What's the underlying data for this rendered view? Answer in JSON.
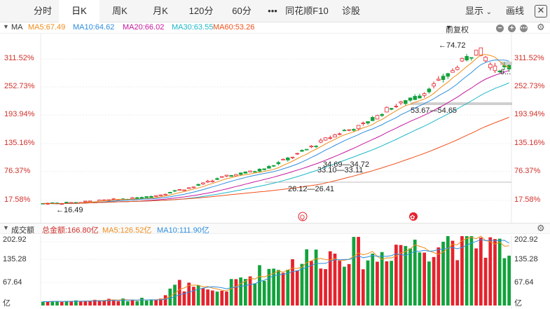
{
  "tabs": [
    {
      "label": "分时"
    },
    {
      "label": "日K"
    },
    {
      "label": "周K"
    },
    {
      "label": "月K"
    },
    {
      "label": "120分"
    },
    {
      "label": "60分"
    },
    {
      "label": "•••"
    },
    {
      "label": "同花顺F10"
    },
    {
      "label": "诊股"
    }
  ],
  "right_tabs": {
    "display": "显示",
    "draw": "画线"
  },
  "ma_legend": {
    "prefix": "MA",
    "items": [
      {
        "text": "MA5:67.49",
        "color": "#f08c1a"
      },
      {
        "text": "MA10:64.62",
        "color": "#2d8ee0"
      },
      {
        "text": "MA20:66.02",
        "color": "#c6189e"
      },
      {
        "text": "MA30:63.55",
        "color": "#1eb8c8"
      },
      {
        "text": "MA60:53.26",
        "color": "#f0501a"
      }
    ],
    "adjust": "前复权"
  },
  "price_axis": [
    "311.52%",
    "252.73%",
    "193.94%",
    "135.16%",
    "76.37%",
    "17.58%"
  ],
  "volume_legend": {
    "title": "成交额",
    "items": [
      {
        "text": "总金额:166.80亿",
        "color": "#d0302a"
      },
      {
        "text": "MA5:126.52亿",
        "color": "#f08c1a"
      },
      {
        "text": "MA10:111.90亿",
        "color": "#2d8ee0"
      }
    ]
  },
  "volume_axis": [
    "202.92",
    "135.28",
    "67.64",
    "亿"
  ],
  "annotations": {
    "high": "74.72",
    "low": "16.49",
    "last": "6...",
    "range1": "53.67—54.65",
    "range2": "34.69—34.72",
    "range3": "33.10—33.11",
    "range4": "26.12—26.41",
    "badge1": "Q",
    "badge2": "✿"
  },
  "chart_data": {
    "type": "candlestick",
    "n_bars": 100,
    "price_range": [
      14,
      78
    ],
    "volume_range": [
      0,
      210
    ],
    "close_sample": [
      16.5,
      16.6,
      16.8,
      17.2,
      17.6,
      18.0,
      18.3,
      18.9,
      20.0,
      21.5,
      22.6,
      24.5,
      26.3,
      27.5,
      28.4,
      30.0,
      32.5,
      35.0,
      38.0,
      41.0,
      43.5,
      45.0,
      48.0,
      52.0,
      54.0,
      56.5,
      60.5,
      64.5,
      70.0,
      74.0,
      66.5,
      67.5
    ],
    "volume_sample": [
      12,
      14,
      13,
      15,
      17,
      16,
      18,
      20,
      28,
      64,
      52,
      40,
      46,
      78,
      92,
      108,
      120,
      138,
      146,
      152,
      168,
      160,
      140,
      175,
      190,
      170,
      196,
      208,
      185,
      200,
      180,
      166.8
    ],
    "colors": {
      "up": "#e5222c",
      "down": "#12a23c"
    }
  }
}
